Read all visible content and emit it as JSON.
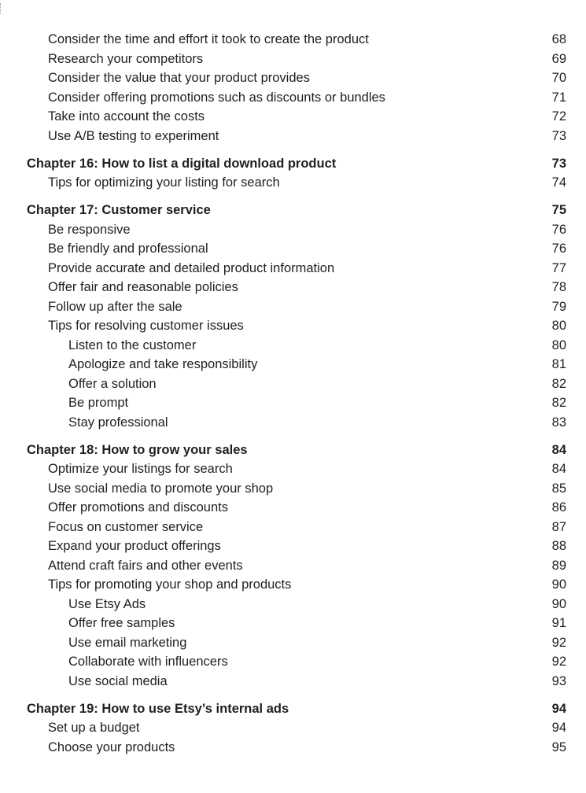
{
  "toc": {
    "entries": [
      {
        "level": 2,
        "title": "Consider the time and effort it took to create the product",
        "page": "68"
      },
      {
        "level": 2,
        "title": "Research your competitors",
        "page": "69"
      },
      {
        "level": 2,
        "title": "Consider the value that your product provides",
        "page": "70"
      },
      {
        "level": 2,
        "title": "Consider offering promotions such as discounts or bundles",
        "page": "71"
      },
      {
        "level": 2,
        "title": "Take into account the costs",
        "page": "72"
      },
      {
        "level": 2,
        "title": "Use A/B testing to experiment",
        "page": "73"
      },
      {
        "level": 1,
        "title": "Chapter 16: How to list a digital download product",
        "page": "73"
      },
      {
        "level": 2,
        "title": "Tips for optimizing your listing for search",
        "page": "74"
      },
      {
        "level": 1,
        "title": "Chapter 17: Customer service",
        "page": "75"
      },
      {
        "level": 2,
        "title": "Be responsive",
        "page": "76"
      },
      {
        "level": 2,
        "title": "Be friendly and professional",
        "page": "76"
      },
      {
        "level": 2,
        "title": "Provide accurate and detailed product information",
        "page": "77"
      },
      {
        "level": 2,
        "title": "Offer fair and reasonable policies",
        "page": "78"
      },
      {
        "level": 2,
        "title": "Follow up after the sale",
        "page": "79"
      },
      {
        "level": 2,
        "title": "Tips for resolving customer issues",
        "page": "80"
      },
      {
        "level": 3,
        "title": "Listen to the customer",
        "page": "80"
      },
      {
        "level": 3,
        "title": "Apologize and take responsibility",
        "page": "81"
      },
      {
        "level": 3,
        "title": "Offer a solution",
        "page": "82"
      },
      {
        "level": 3,
        "title": "Be prompt",
        "page": "82"
      },
      {
        "level": 3,
        "title": "Stay professional",
        "page": "83"
      },
      {
        "level": 1,
        "title": "Chapter 18: How to grow your sales",
        "page": "84"
      },
      {
        "level": 2,
        "title": "Optimize your listings for search",
        "page": "84"
      },
      {
        "level": 2,
        "title": "Use social media to promote your shop",
        "page": "85"
      },
      {
        "level": 2,
        "title": "Offer promotions and discounts",
        "page": "86"
      },
      {
        "level": 2,
        "title": "Focus on customer service",
        "page": "87"
      },
      {
        "level": 2,
        "title": "Expand your product offerings",
        "page": "88"
      },
      {
        "level": 2,
        "title": "Attend craft fairs and other events",
        "page": "89"
      },
      {
        "level": 2,
        "title": "Tips for promoting your shop and products",
        "page": "90"
      },
      {
        "level": 3,
        "title": "Use Etsy Ads",
        "page": "90"
      },
      {
        "level": 3,
        "title": "Offer free samples",
        "page": "91"
      },
      {
        "level": 3,
        "title": "Use email marketing",
        "page": "92"
      },
      {
        "level": 3,
        "title": "Collaborate with influencers",
        "page": "92"
      },
      {
        "level": 3,
        "title": "Use social media",
        "page": "93"
      },
      {
        "level": 1,
        "title": "Chapter 19: How to use Etsy’s internal ads",
        "page": "94"
      },
      {
        "level": 2,
        "title": "Set up a budget",
        "page": "94"
      },
      {
        "level": 2,
        "title": "Choose your products",
        "page": "95"
      }
    ]
  }
}
